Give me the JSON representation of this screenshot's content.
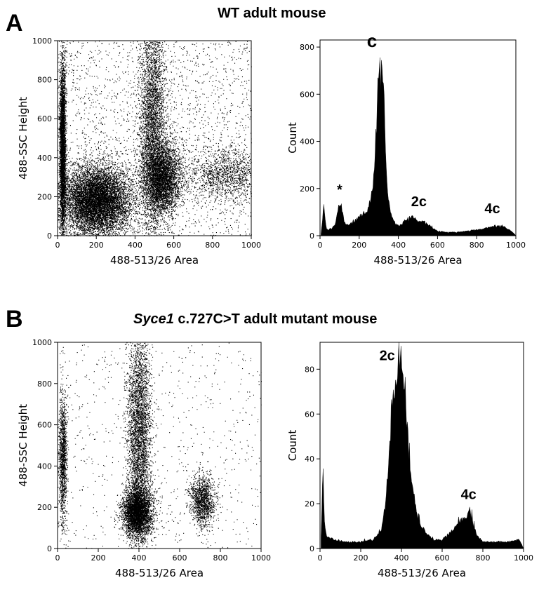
{
  "panels": {
    "A": {
      "letter": "A",
      "title": "WT adult mouse"
    },
    "B": {
      "letter": "B",
      "title_italic": "Syce1",
      "title_rest": " c.727C>T adult mutant mouse"
    }
  },
  "chart_data": [
    {
      "id": "A-scatter",
      "type": "scatter",
      "xlabel": "488-513/26 Area",
      "ylabel": "488-SSC Height",
      "xlim": [
        0,
        1000
      ],
      "ylim": [
        0,
        1000
      ],
      "xticks": [
        0,
        200,
        400,
        600,
        800,
        1000
      ],
      "yticks": [
        0,
        200,
        400,
        600,
        800,
        1000
      ],
      "clusters": [
        {
          "x_center": 25,
          "y_center": 450,
          "x_spread": 8,
          "y_spread": 220,
          "density": "high"
        },
        {
          "x_center": 200,
          "y_center": 180,
          "x_spread": 90,
          "y_spread": 90,
          "density": "very high"
        },
        {
          "x_center": 490,
          "y_center": 560,
          "x_spread": 35,
          "y_spread": 300,
          "density": "high"
        },
        {
          "x_center": 540,
          "y_center": 300,
          "x_spread": 50,
          "y_spread": 90,
          "density": "high"
        },
        {
          "x_center": 870,
          "y_center": 320,
          "x_spread": 100,
          "y_spread": 70,
          "density": "medium"
        }
      ]
    },
    {
      "id": "A-histogram",
      "type": "area",
      "xlabel": "488-513/26 Area",
      "ylabel": "Count",
      "xlim": [
        0,
        1000
      ],
      "ylim": [
        0,
        830
      ],
      "xticks": [
        0,
        200,
        400,
        600,
        800,
        1000
      ],
      "yticks": [
        0,
        200,
        400,
        600,
        800
      ],
      "x": [
        5,
        20,
        30,
        40,
        60,
        80,
        95,
        110,
        125,
        140,
        160,
        180,
        200,
        220,
        240,
        260,
        275,
        285,
        295,
        305,
        315,
        325,
        335,
        345,
        360,
        380,
        400,
        420,
        440,
        460,
        480,
        500,
        520,
        540,
        560,
        580,
        600,
        640,
        700,
        760,
        820,
        860,
        900,
        940,
        970,
        990,
        1000
      ],
      "y": [
        10,
        130,
        40,
        25,
        30,
        60,
        135,
        120,
        60,
        50,
        55,
        65,
        80,
        90,
        110,
        160,
        250,
        420,
        650,
        760,
        780,
        640,
        380,
        180,
        90,
        60,
        45,
        50,
        65,
        80,
        75,
        60,
        65,
        55,
        45,
        30,
        20,
        15,
        15,
        20,
        28,
        35,
        40,
        38,
        25,
        10,
        0
      ],
      "annotations": [
        {
          "text": "c",
          "x": 265,
          "y": 800
        },
        {
          "text": "*",
          "x": 100,
          "y": 175
        },
        {
          "text": "2c",
          "x": 505,
          "y": 125
        },
        {
          "text": "4c",
          "x": 880,
          "y": 95
        }
      ]
    },
    {
      "id": "B-scatter",
      "type": "scatter",
      "xlabel": "488-513/26 Area",
      "ylabel": "488-SSC Height",
      "xlim": [
        0,
        1000
      ],
      "ylim": [
        0,
        1000
      ],
      "xticks": [
        0,
        200,
        400,
        600,
        800,
        1000
      ],
      "yticks": [
        0,
        200,
        400,
        600,
        800,
        1000
      ],
      "clusters": [
        {
          "x_center": 25,
          "y_center": 430,
          "x_spread": 10,
          "y_spread": 160,
          "density": "medium"
        },
        {
          "x_center": 400,
          "y_center": 560,
          "x_spread": 30,
          "y_spread": 280,
          "density": "high"
        },
        {
          "x_center": 390,
          "y_center": 180,
          "x_spread": 35,
          "y_spread": 60,
          "density": "high"
        },
        {
          "x_center": 710,
          "y_center": 230,
          "x_spread": 30,
          "y_spread": 60,
          "density": "medium"
        }
      ]
    },
    {
      "id": "B-histogram",
      "type": "area",
      "xlabel": "488-513/26 Area",
      "ylabel": "Count",
      "xlim": [
        0,
        1000
      ],
      "ylim": [
        0,
        92
      ],
      "xticks": [
        0,
        200,
        400,
        600,
        800,
        1000
      ],
      "yticks": [
        0,
        20,
        40,
        60,
        80
      ],
      "x": [
        5,
        15,
        22,
        30,
        45,
        70,
        120,
        200,
        260,
        300,
        320,
        340,
        355,
        370,
        385,
        395,
        405,
        415,
        430,
        450,
        470,
        490,
        520,
        560,
        600,
        640,
        670,
        700,
        720,
        735,
        750,
        770,
        800,
        860,
        920,
        980,
        1000
      ],
      "y": [
        5,
        36,
        12,
        6,
        5,
        4,
        3,
        3,
        4,
        8,
        18,
        45,
        62,
        75,
        80,
        86,
        80,
        72,
        52,
        32,
        18,
        12,
        7,
        4,
        4,
        7,
        10,
        14,
        15,
        17,
        13,
        6,
        3,
        3,
        3,
        4,
        0
      ],
      "annotations": [
        {
          "text": "2c",
          "x": 330,
          "y": 84
        },
        {
          "text": "4c",
          "x": 730,
          "y": 22
        }
      ]
    }
  ]
}
